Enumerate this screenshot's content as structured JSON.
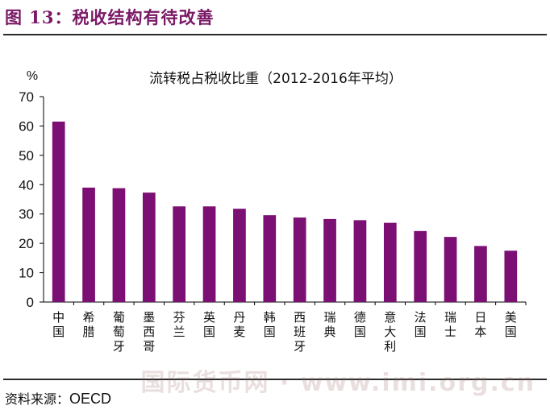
{
  "figure": {
    "title": "图 13：税收结构有待改善",
    "source_label": "资料来源：",
    "source_value": "OECD"
  },
  "colors": {
    "bar": "#7b0f73",
    "title": "#7a1a66",
    "axis": "#000000"
  },
  "chart_data": {
    "type": "bar",
    "title": "流转税占税收比重（2012-2016年平均）",
    "ylabel": "%",
    "xlabel": "",
    "ylim": [
      0,
      70
    ],
    "yticks": [
      0,
      10,
      20,
      30,
      40,
      50,
      60,
      70
    ],
    "categories": [
      "中国",
      "希腊",
      "葡萄牙",
      "墨西哥",
      "芬兰",
      "英国",
      "丹麦",
      "韩国",
      "西班牙",
      "瑞典",
      "德国",
      "意大利",
      "法国",
      "瑞士",
      "日本",
      "美国"
    ],
    "values": [
      61.5,
      39,
      38.8,
      37.3,
      32.6,
      32.6,
      31.8,
      29.6,
      28.8,
      28.3,
      27.9,
      27,
      24.2,
      22.2,
      19.1,
      17.5
    ],
    "grid": false,
    "legend": "none"
  },
  "watermark": "国际货币网 · www.imi.org.cn"
}
